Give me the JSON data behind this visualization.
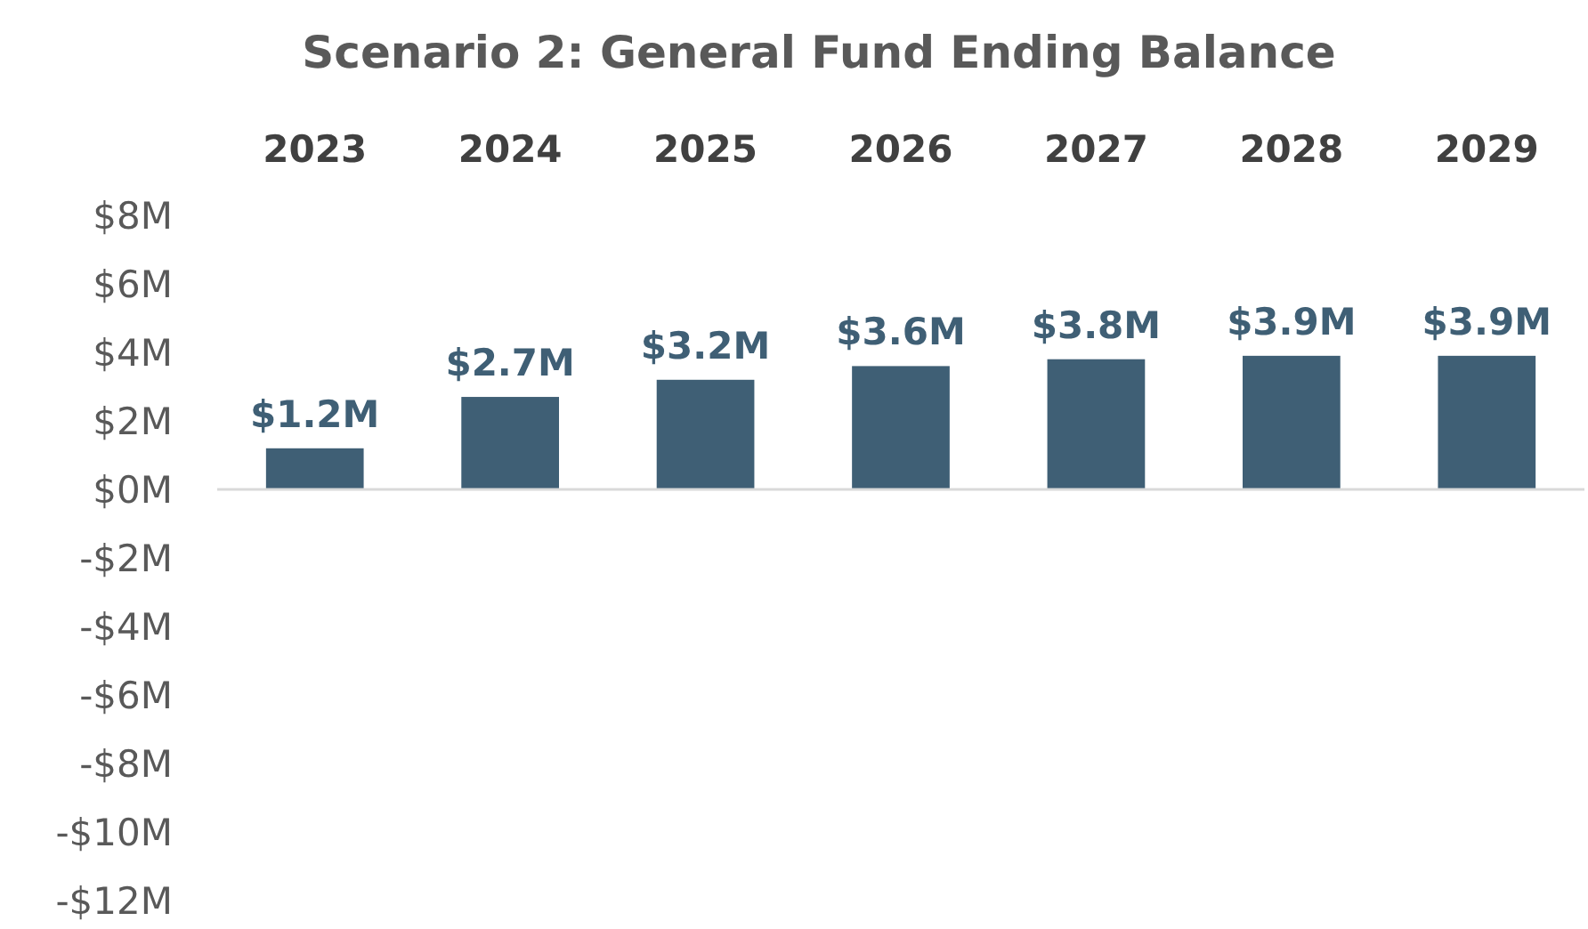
{
  "chart_data": {
    "type": "bar",
    "title": "Scenario 2: General Fund Ending Balance",
    "categories": [
      "2023",
      "2024",
      "2025",
      "2026",
      "2027",
      "2028",
      "2029"
    ],
    "values": [
      1.2,
      2.7,
      3.2,
      3.6,
      3.8,
      3.9,
      3.9
    ],
    "value_labels": [
      "$1.2M",
      "$2.7M",
      "$3.2M",
      "$3.6M",
      "$3.8M",
      "$3.9M",
      "$3.9M"
    ],
    "color": "#3f5f75",
    "ylim": [
      -12,
      8
    ],
    "yticks": [
      {
        "value": 8,
        "label": "$8M"
      },
      {
        "value": 6,
        "label": "$6M"
      },
      {
        "value": 4,
        "label": "$4M"
      },
      {
        "value": 2,
        "label": "$2M"
      },
      {
        "value": 0,
        "label": "$0M"
      },
      {
        "value": -2,
        "label": "-$2M"
      },
      {
        "value": -4,
        "label": "-$4M"
      },
      {
        "value": -6,
        "label": "-$6M"
      },
      {
        "value": -8,
        "label": "-$8M"
      },
      {
        "value": -10,
        "label": "-$10M"
      },
      {
        "value": -12,
        "label": "-$12M"
      }
    ],
    "stacked": false
  }
}
